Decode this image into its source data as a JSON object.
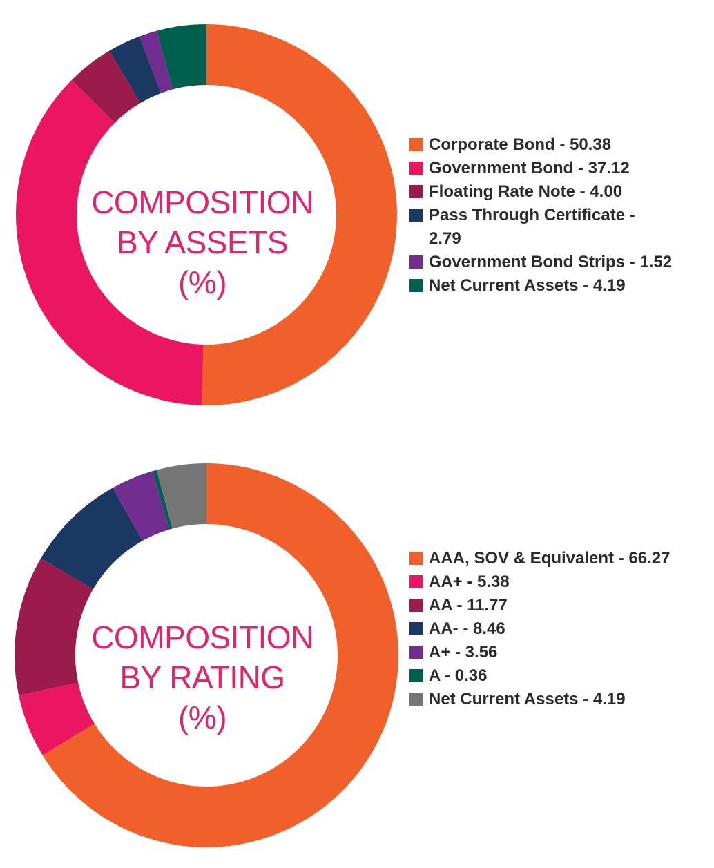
{
  "chart_data": [
    {
      "type": "pie",
      "center_title": [
        "COMPOSITION",
        "BY ASSETS",
        "(%)"
      ],
      "series": [
        {
          "values": [
            50.38,
            37.12,
            4.0,
            2.79,
            1.52,
            4.19
          ],
          "labels": [
            "Corporate Bond - 50.38",
            "Government Bond - 37.12",
            "Floating Rate Note - 4.00",
            "Pass Through Certificate - 2.79",
            "Government Bond Strips - 1.52",
            "Net Current Assets - 4.19"
          ],
          "colors": [
            "#f15f2a",
            "#ea1660",
            "#9b1b4d",
            "#1b3862",
            "#712d8f",
            "#00604f"
          ]
        }
      ],
      "legend": "right"
    },
    {
      "type": "pie",
      "center_title": [
        "COMPOSITION",
        "BY RATING",
        "(%)"
      ],
      "series": [
        {
          "values": [
            66.27,
            5.38,
            11.77,
            8.46,
            3.56,
            0.36,
            4.19
          ],
          "labels": [
            "AAA, SOV & Equivalent - 66.27",
            "AA+ - 5.38",
            "AA - 11.77",
            "AA- - 8.46",
            "A+ - 3.56",
            "A - 0.36",
            "Net Current Assets - 4.19"
          ],
          "colors": [
            "#f15f2a",
            "#ea1660",
            "#9b1b4d",
            "#1b3862",
            "#712d8f",
            "#00604f",
            "#757575"
          ]
        }
      ],
      "legend": "right"
    }
  ]
}
